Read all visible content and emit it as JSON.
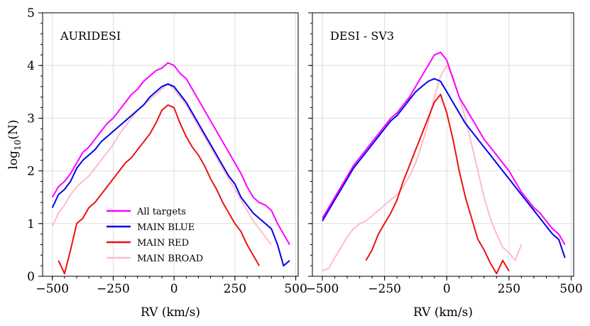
{
  "chart_data": [
    {
      "type": "line",
      "title": "AURIDESI",
      "xlabel": "RV (km/s)",
      "ylabel": "log",
      "ylabel_sub": "10",
      "ylabel_arg": "(N)",
      "xlim": [
        -540,
        510
      ],
      "ylim": [
        0,
        5
      ],
      "xticks": [
        "−500",
        "−250",
        "0",
        "250",
        "500"
      ],
      "xtick_values": [
        -500,
        -250,
        0,
        250,
        500
      ],
      "yticks": [
        "0",
        "1",
        "2",
        "3",
        "4",
        "5"
      ],
      "ytick_values": [
        0,
        1,
        2,
        3,
        4,
        5
      ],
      "grid": true,
      "legend": "lower-center",
      "series": [
        {
          "name": "All targets",
          "color": "#ff00ff",
          "x": [
            -500,
            -475,
            -450,
            -425,
            -400,
            -375,
            -350,
            -325,
            -300,
            -275,
            -250,
            -225,
            -200,
            -175,
            -150,
            -125,
            -100,
            -75,
            -50,
            -25,
            0,
            25,
            50,
            75,
            100,
            125,
            150,
            175,
            200,
            225,
            250,
            275,
            300,
            325,
            350,
            375,
            400,
            425,
            450,
            475
          ],
          "y": [
            1.5,
            1.7,
            1.8,
            1.95,
            2.15,
            2.35,
            2.45,
            2.6,
            2.75,
            2.9,
            3.0,
            3.15,
            3.3,
            3.45,
            3.55,
            3.7,
            3.8,
            3.9,
            3.95,
            4.05,
            4.0,
            3.85,
            3.75,
            3.55,
            3.35,
            3.15,
            2.95,
            2.75,
            2.55,
            2.35,
            2.15,
            1.95,
            1.7,
            1.5,
            1.4,
            1.35,
            1.25,
            1.0,
            0.8,
            0.6
          ]
        },
        {
          "name": "MAIN BLUE",
          "color": "#0000ee",
          "x": [
            -500,
            -475,
            -450,
            -425,
            -400,
            -375,
            -350,
            -325,
            -300,
            -275,
            -250,
            -225,
            -200,
            -175,
            -150,
            -125,
            -100,
            -75,
            -50,
            -25,
            0,
            25,
            50,
            75,
            100,
            125,
            150,
            175,
            200,
            225,
            250,
            275,
            300,
            325,
            350,
            375,
            400,
            425,
            450,
            475
          ],
          "y": [
            1.3,
            1.55,
            1.65,
            1.8,
            2.05,
            2.2,
            2.3,
            2.4,
            2.55,
            2.65,
            2.75,
            2.85,
            2.95,
            3.05,
            3.15,
            3.25,
            3.4,
            3.5,
            3.6,
            3.65,
            3.6,
            3.45,
            3.3,
            3.1,
            2.9,
            2.7,
            2.5,
            2.3,
            2.1,
            1.9,
            1.75,
            1.5,
            1.35,
            1.2,
            1.1,
            1.0,
            0.9,
            0.6,
            0.2,
            0.3
          ]
        },
        {
          "name": "MAIN RED",
          "color": "#ee1111",
          "x": [
            -475,
            -450,
            -425,
            -400,
            -375,
            -350,
            -325,
            -300,
            -275,
            -250,
            -225,
            -200,
            -175,
            -150,
            -125,
            -100,
            -75,
            -50,
            -25,
            0,
            25,
            50,
            75,
            100,
            125,
            150,
            175,
            200,
            225,
            250,
            275,
            300,
            325,
            350
          ],
          "y": [
            0.3,
            0.05,
            0.5,
            1.0,
            1.1,
            1.3,
            1.4,
            1.55,
            1.7,
            1.85,
            2.0,
            2.15,
            2.25,
            2.4,
            2.55,
            2.7,
            2.9,
            3.15,
            3.25,
            3.2,
            2.9,
            2.65,
            2.45,
            2.3,
            2.1,
            1.85,
            1.65,
            1.4,
            1.2,
            1.0,
            0.85,
            0.6,
            0.4,
            0.2
          ]
        },
        {
          "name": "MAIN BROAD",
          "color": "#ffbbcc",
          "x": [
            -500,
            -475,
            -450,
            -425,
            -400,
            -375,
            -350,
            -325,
            -300,
            -275,
            -250,
            -225,
            -200,
            -175,
            -150,
            -125,
            -100,
            -75,
            -50,
            -25,
            0,
            25,
            50,
            75,
            100,
            125,
            150,
            175,
            200,
            225,
            250,
            275,
            300,
            325,
            350,
            375,
            400
          ],
          "y": [
            0.95,
            1.2,
            1.35,
            1.55,
            1.7,
            1.8,
            1.9,
            2.05,
            2.2,
            2.35,
            2.5,
            2.7,
            2.85,
            3.0,
            3.15,
            3.25,
            3.35,
            3.45,
            3.55,
            3.65,
            3.55,
            3.4,
            3.25,
            3.05,
            2.85,
            2.65,
            2.45,
            2.25,
            2.05,
            1.85,
            1.65,
            1.45,
            1.25,
            1.05,
            0.9,
            0.75,
            0.6
          ]
        }
      ]
    },
    {
      "type": "line",
      "title": "DESI - SV3",
      "xlabel": "RV (km/s)",
      "xlim": [
        -540,
        510
      ],
      "ylim": [
        0,
        5
      ],
      "xticks": [
        "−500",
        "−250",
        "0",
        "250",
        "500"
      ],
      "xtick_values": [
        -500,
        -250,
        0,
        250,
        500
      ],
      "grid": true,
      "series": [
        {
          "name": "All targets",
          "color": "#ff00ff",
          "x": [
            -500,
            -475,
            -450,
            -425,
            -400,
            -375,
            -350,
            -325,
            -300,
            -275,
            -250,
            -225,
            -200,
            -175,
            -150,
            -125,
            -100,
            -75,
            -50,
            -25,
            0,
            25,
            50,
            75,
            100,
            125,
            150,
            175,
            200,
            225,
            250,
            275,
            300,
            325,
            350,
            375,
            400,
            425,
            450,
            475
          ],
          "y": [
            1.1,
            1.3,
            1.5,
            1.7,
            1.9,
            2.1,
            2.25,
            2.4,
            2.55,
            2.7,
            2.85,
            3.0,
            3.1,
            3.25,
            3.4,
            3.6,
            3.8,
            4.0,
            4.2,
            4.25,
            4.1,
            3.75,
            3.4,
            3.2,
            3.0,
            2.8,
            2.6,
            2.45,
            2.3,
            2.15,
            2.0,
            1.8,
            1.6,
            1.45,
            1.3,
            1.2,
            1.05,
            0.9,
            0.8,
            0.6
          ]
        },
        {
          "name": "MAIN BLUE",
          "color": "#0000ee",
          "x": [
            -500,
            -475,
            -450,
            -425,
            -400,
            -375,
            -350,
            -325,
            -300,
            -275,
            -250,
            -225,
            -200,
            -175,
            -150,
            -125,
            -100,
            -75,
            -50,
            -25,
            0,
            25,
            50,
            75,
            100,
            125,
            150,
            175,
            200,
            225,
            250,
            275,
            300,
            325,
            350,
            375,
            400,
            425,
            450,
            475
          ],
          "y": [
            1.05,
            1.25,
            1.45,
            1.65,
            1.85,
            2.05,
            2.2,
            2.35,
            2.5,
            2.65,
            2.8,
            2.95,
            3.05,
            3.2,
            3.35,
            3.5,
            3.6,
            3.7,
            3.75,
            3.7,
            3.5,
            3.3,
            3.1,
            2.9,
            2.75,
            2.6,
            2.45,
            2.3,
            2.15,
            2.0,
            1.85,
            1.7,
            1.55,
            1.4,
            1.25,
            1.1,
            0.95,
            0.8,
            0.7,
            0.35
          ]
        },
        {
          "name": "MAIN RED",
          "color": "#ee1111",
          "x": [
            -325,
            -300,
            -275,
            -250,
            -225,
            -200,
            -175,
            -150,
            -125,
            -100,
            -75,
            -50,
            -25,
            0,
            25,
            50,
            75,
            100,
            125,
            150,
            175,
            200,
            225,
            250
          ],
          "y": [
            0.3,
            0.5,
            0.8,
            1.0,
            1.2,
            1.45,
            1.8,
            2.1,
            2.4,
            2.7,
            3.0,
            3.3,
            3.45,
            3.1,
            2.6,
            2.0,
            1.5,
            1.1,
            0.7,
            0.5,
            0.25,
            0.05,
            0.3,
            0.1
          ]
        },
        {
          "name": "MAIN BROAD",
          "color": "#ffbbcc",
          "x": [
            -500,
            -475,
            -450,
            -425,
            -400,
            -375,
            -350,
            -325,
            -300,
            -275,
            -250,
            -225,
            -200,
            -175,
            -150,
            -125,
            -100,
            -75,
            -50,
            -25,
            0,
            25,
            50,
            75,
            100,
            125,
            150,
            175,
            200,
            225,
            250,
            275,
            300
          ],
          "y": [
            0.1,
            0.15,
            0.35,
            0.55,
            0.75,
            0.9,
            1.0,
            1.05,
            1.15,
            1.25,
            1.35,
            1.45,
            1.55,
            1.7,
            1.9,
            2.15,
            2.5,
            2.9,
            3.4,
            3.8,
            4.0,
            3.8,
            3.4,
            3.0,
            2.5,
            2.0,
            1.5,
            1.1,
            0.8,
            0.55,
            0.45,
            0.3,
            0.6
          ]
        }
      ]
    }
  ]
}
